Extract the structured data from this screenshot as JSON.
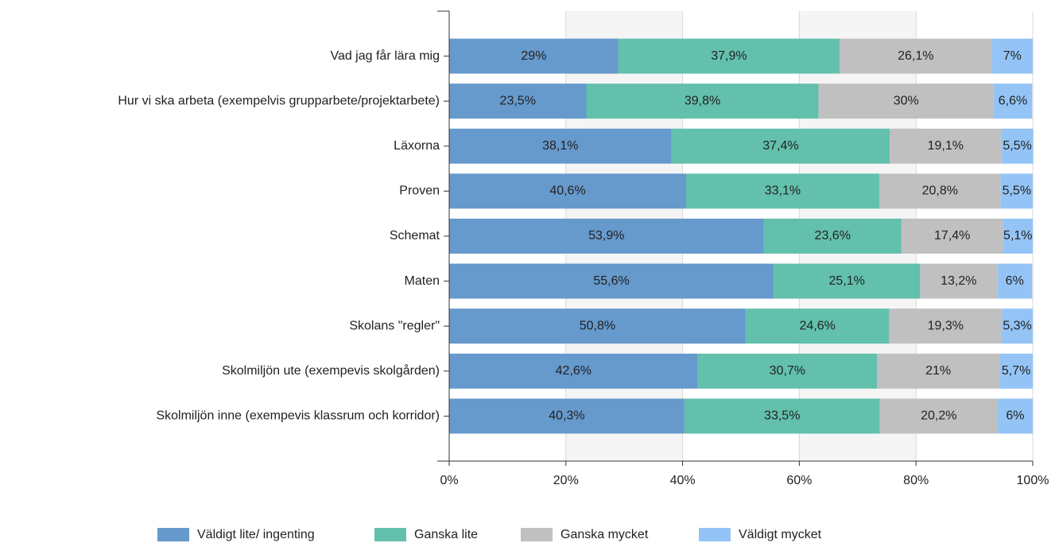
{
  "chart_data": {
    "type": "stacked_barh",
    "categories": [
      "Vad jag får lära mig",
      "Hur vi ska arbeta (exempelvis grupparbete/projektarbete)",
      "Läxorna",
      "Proven",
      "Schemat",
      "Maten",
      "Skolans \"regler\"",
      "Skolmiljön ute (exempevis skolgården)",
      "Skolmiljön inne (exempevis klassrum och korridor)"
    ],
    "series": [
      {
        "name": "Väldigt lite/ ingenting",
        "color": "#6699cc",
        "values": [
          29,
          23.5,
          38.1,
          40.6,
          53.9,
          55.6,
          50.8,
          42.6,
          40.3
        ],
        "value_labels": [
          "29%",
          "23,5%",
          "38,1%",
          "40,6%",
          "53,9%",
          "55,6%",
          "50,8%",
          "42,6%",
          "40,3%"
        ]
      },
      {
        "name": "Ganska lite",
        "color": "#62c0ac",
        "values": [
          37.9,
          39.8,
          37.4,
          33.1,
          23.6,
          25.1,
          24.6,
          30.7,
          33.5
        ],
        "value_labels": [
          "37,9%",
          "39,8%",
          "37,4%",
          "33,1%",
          "23,6%",
          "25,1%",
          "24,6%",
          "30,7%",
          "33,5%"
        ]
      },
      {
        "name": "Ganska mycket",
        "color": "#c0c0c0",
        "values": [
          26.1,
          30,
          19.1,
          20.8,
          17.4,
          13.2,
          19.3,
          21,
          20.2
        ],
        "value_labels": [
          "26,1%",
          "30%",
          "19,1%",
          "20,8%",
          "17,4%",
          "13,2%",
          "19,3%",
          "21%",
          "20,2%"
        ]
      },
      {
        "name": "Väldigt mycket",
        "color": "#94c4f5",
        "values": [
          7,
          6.6,
          5.5,
          5.5,
          5.1,
          6,
          5.3,
          5.7,
          6
        ],
        "value_labels": [
          "7%",
          "6,6%",
          "5,5%",
          "5,5%",
          "5,1%",
          "6%",
          "5,3%",
          "5,7%",
          "6%"
        ]
      }
    ],
    "xlim": [
      0,
      100
    ],
    "xticks": [
      {
        "value": 0,
        "label": "0%"
      },
      {
        "value": 20,
        "label": "20%"
      },
      {
        "value": 40,
        "label": "40%"
      },
      {
        "value": 60,
        "label": "60%"
      },
      {
        "value": 80,
        "label": "80%"
      },
      {
        "value": 100,
        "label": "100%"
      }
    ],
    "grid": true,
    "legend": "bottom"
  }
}
